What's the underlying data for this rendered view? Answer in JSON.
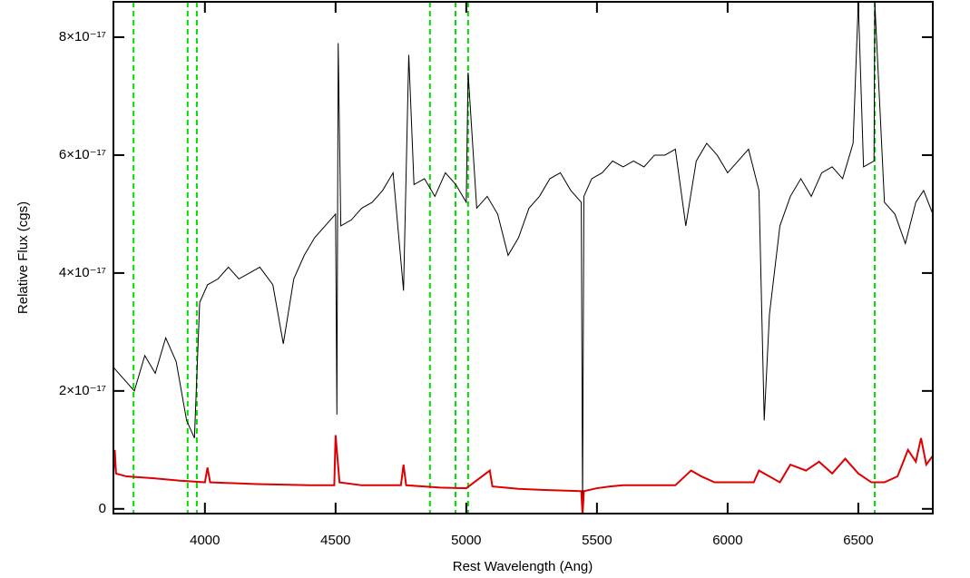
{
  "chart_data": {
    "type": "line",
    "x_label": "Rest Wavelength (Ang)",
    "y_label": "Relative Flux (cgs)",
    "xlim": [
      3650,
      6785
    ],
    "ylim": [
      -8e-19,
      8.6e-17
    ],
    "xticks": [
      4000,
      4500,
      5000,
      5500,
      6000,
      6500
    ],
    "yticks": [
      0,
      {
        "value": 2e-17,
        "label": "2×10⁻¹⁷"
      },
      {
        "value": 4e-17,
        "label": "4×10⁻¹⁷"
      },
      {
        "value": 6e-17,
        "label": "6×10⁻¹⁷"
      },
      {
        "value": 8e-17,
        "label": "8×10⁻¹⁷"
      }
    ],
    "vlines": {
      "color": "#00dd00",
      "values": [
        3727,
        3934,
        3969,
        4861,
        4959,
        5007,
        6563
      ]
    },
    "series": [
      {
        "color": "#000000",
        "x": [
          3650,
          3690,
          3730,
          3770,
          3810,
          3850,
          3890,
          3930,
          3960,
          3980,
          4010,
          4050,
          4090,
          4130,
          4170,
          4210,
          4260,
          4300,
          4340,
          4380,
          4420,
          4460,
          4500,
          4505,
          4510,
          4520,
          4560,
          4600,
          4640,
          4680,
          4720,
          4760,
          4780,
          4800,
          4840,
          4880,
          4920,
          4960,
          5000,
          5007,
          5040,
          5080,
          5120,
          5160,
          5200,
          5240,
          5280,
          5320,
          5360,
          5400,
          5440,
          5445,
          5450,
          5480,
          5520,
          5560,
          5600,
          5640,
          5680,
          5720,
          5760,
          5800,
          5840,
          5880,
          5920,
          5960,
          6000,
          6040,
          6080,
          6120,
          6140,
          6160,
          6200,
          6240,
          6280,
          6320,
          6360,
          6400,
          6440,
          6480,
          6500,
          6520,
          6560,
          6563,
          6600,
          6640,
          6680,
          6720,
          6750,
          6785
        ],
        "values": [
          2.4e-17,
          2.2e-17,
          2e-17,
          2.6e-17,
          2.3e-17,
          2.9e-17,
          2.5e-17,
          1.5e-17,
          1.2e-17,
          3.5e-17,
          3.8e-17,
          3.9e-17,
          4.1e-17,
          3.9e-17,
          4e-17,
          4.1e-17,
          3.8e-17,
          2.8e-17,
          3.9e-17,
          4.3e-17,
          4.6e-17,
          4.8e-17,
          5e-17,
          1.6e-17,
          7.9e-17,
          4.8e-17,
          4.9e-17,
          5.1e-17,
          5.2e-17,
          5.4e-17,
          5.7e-17,
          3.7e-17,
          7.7e-17,
          5.5e-17,
          5.6e-17,
          5.3e-17,
          5.7e-17,
          5.5e-17,
          5.2e-17,
          7.4e-17,
          5.1e-17,
          5.3e-17,
          5e-17,
          4.3e-17,
          4.6e-17,
          5.1e-17,
          5.3e-17,
          5.6e-17,
          5.7e-17,
          5.4e-17,
          5.2e-17,
          0,
          5.3e-17,
          5.6e-17,
          5.7e-17,
          5.9e-17,
          5.8e-17,
          5.9e-17,
          5.8e-17,
          6e-17,
          6e-17,
          6.1e-17,
          4.8e-17,
          5.9e-17,
          6.2e-17,
          6e-17,
          5.7e-17,
          5.9e-17,
          6.1e-17,
          5.4e-17,
          1.5e-17,
          3.3e-17,
          4.8e-17,
          5.3e-17,
          5.6e-17,
          5.3e-17,
          5.7e-17,
          5.8e-17,
          5.6e-17,
          6.2e-17,
          8.6e-17,
          5.8e-17,
          5.9e-17,
          8.6e-17,
          5.2e-17,
          5e-17,
          4.5e-17,
          5.2e-17,
          5.4e-17,
          5e-17
        ]
      },
      {
        "color": "#dd0000",
        "x": [
          3650,
          3655,
          3660,
          3700,
          3800,
          3900,
          4000,
          4010,
          4020,
          4200,
          4400,
          4495,
          4500,
          4515,
          4600,
          4750,
          4760,
          4770,
          4900,
          5000,
          5090,
          5100,
          5200,
          5300,
          5440,
          5445,
          5450,
          5500,
          5550,
          5600,
          5700,
          5800,
          5860,
          5900,
          5950,
          6050,
          6100,
          6120,
          6200,
          6240,
          6300,
          6350,
          6400,
          6450,
          6500,
          6550,
          6600,
          6650,
          6690,
          6720,
          6740,
          6760,
          6785
        ],
        "values": [
          6e-18,
          1e-17,
          6e-18,
          5.5e-18,
          5.2e-18,
          4.8e-18,
          4.5e-18,
          7e-18,
          4.5e-18,
          4.2e-18,
          4e-18,
          4e-18,
          1.25e-17,
          4.5e-18,
          4e-18,
          4e-18,
          7.5e-18,
          4e-18,
          3.6e-18,
          3.5e-18,
          6.5e-18,
          3.8e-18,
          3.4e-18,
          3.2e-18,
          3e-18,
          -1e-18,
          3e-18,
          3.5e-18,
          3.8e-18,
          4e-18,
          4e-18,
          4e-18,
          6.5e-18,
          5.5e-18,
          4.5e-18,
          4.5e-18,
          4.5e-18,
          6.5e-18,
          4.5e-18,
          7.5e-18,
          6.5e-18,
          8e-18,
          6e-18,
          8.5e-18,
          6e-18,
          4.5e-18,
          4.5e-18,
          5.5e-18,
          1e-17,
          8e-18,
          1.2e-17,
          7.5e-18,
          9e-18
        ]
      }
    ]
  }
}
